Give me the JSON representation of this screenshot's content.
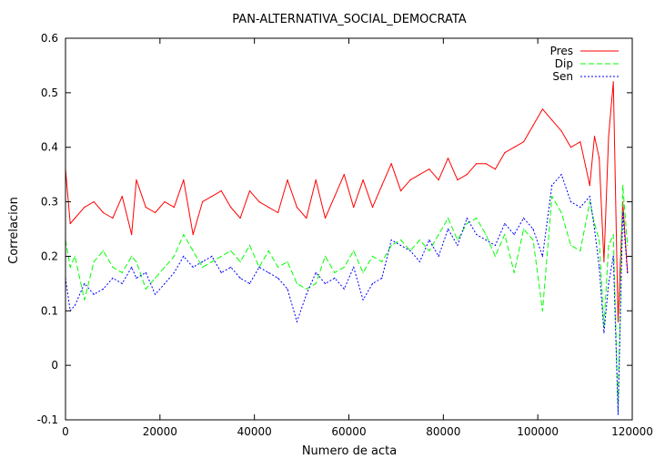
{
  "chart_data": {
    "type": "line",
    "title": "PAN-ALTERNATIVA_SOCIAL_DEMOCRATA",
    "xlabel": "Numero de acta",
    "ylabel": "Correlacion",
    "xlim": [
      0,
      120000
    ],
    "ylim": [
      -0.1,
      0.6
    ],
    "xticks": [
      0,
      20000,
      40000,
      60000,
      80000,
      100000,
      120000
    ],
    "yticks": [
      -0.1,
      0,
      0.1,
      0.2,
      0.3,
      0.4,
      0.5,
      0.6
    ],
    "grid": false,
    "legend_position": "top-right",
    "series": [
      {
        "name": "Pres",
        "color": "#ff0000",
        "dash": "solid",
        "x": [
          0,
          1000,
          2000,
          4000,
          6000,
          8000,
          10000,
          12000,
          14000,
          15000,
          17000,
          19000,
          21000,
          23000,
          25000,
          27000,
          29000,
          31000,
          33000,
          35000,
          37000,
          39000,
          41000,
          43000,
          45000,
          47000,
          49000,
          51000,
          53000,
          55000,
          57000,
          59000,
          61000,
          63000,
          65000,
          67000,
          69000,
          71000,
          73000,
          75000,
          77000,
          79000,
          81000,
          83000,
          85000,
          87000,
          89000,
          91000,
          93000,
          95000,
          97000,
          99000,
          101000,
          103000,
          105000,
          107000,
          109000,
          111000,
          112000,
          113000,
          114000,
          115000,
          116000,
          117000,
          118000,
          119000
        ],
        "values": [
          0.36,
          0.26,
          0.27,
          0.29,
          0.3,
          0.28,
          0.27,
          0.31,
          0.24,
          0.34,
          0.29,
          0.28,
          0.3,
          0.29,
          0.34,
          0.24,
          0.3,
          0.31,
          0.32,
          0.29,
          0.27,
          0.32,
          0.3,
          0.29,
          0.28,
          0.34,
          0.29,
          0.27,
          0.34,
          0.27,
          0.31,
          0.35,
          0.29,
          0.34,
          0.29,
          0.33,
          0.37,
          0.32,
          0.34,
          0.35,
          0.36,
          0.34,
          0.38,
          0.34,
          0.35,
          0.37,
          0.37,
          0.36,
          0.39,
          0.4,
          0.41,
          0.44,
          0.47,
          0.45,
          0.43,
          0.4,
          0.41,
          0.33,
          0.42,
          0.38,
          0.19,
          0.42,
          0.52,
          0.08,
          0.3,
          0.17
        ]
      },
      {
        "name": "Dip",
        "color": "#00ff00",
        "dash": "6,3",
        "x": [
          0,
          1000,
          2000,
          4000,
          6000,
          8000,
          10000,
          12000,
          14000,
          15000,
          17000,
          19000,
          21000,
          23000,
          25000,
          27000,
          29000,
          31000,
          33000,
          35000,
          37000,
          39000,
          41000,
          43000,
          45000,
          47000,
          49000,
          51000,
          53000,
          55000,
          57000,
          59000,
          61000,
          63000,
          65000,
          67000,
          69000,
          71000,
          73000,
          75000,
          77000,
          79000,
          81000,
          83000,
          85000,
          87000,
          89000,
          91000,
          93000,
          95000,
          97000,
          99000,
          101000,
          103000,
          105000,
          107000,
          109000,
          111000,
          112000,
          113000,
          114000,
          115000,
          116000,
          117000,
          118000,
          119000
        ],
        "values": [
          0.23,
          0.18,
          0.2,
          0.12,
          0.19,
          0.21,
          0.18,
          0.17,
          0.2,
          0.19,
          0.14,
          0.16,
          0.18,
          0.2,
          0.24,
          0.21,
          0.18,
          0.19,
          0.2,
          0.21,
          0.19,
          0.22,
          0.18,
          0.21,
          0.18,
          0.19,
          0.15,
          0.14,
          0.15,
          0.2,
          0.17,
          0.18,
          0.21,
          0.17,
          0.2,
          0.19,
          0.22,
          0.23,
          0.21,
          0.23,
          0.21,
          0.24,
          0.27,
          0.23,
          0.26,
          0.27,
          0.24,
          0.2,
          0.24,
          0.17,
          0.25,
          0.23,
          0.1,
          0.31,
          0.28,
          0.22,
          0.21,
          0.3,
          0.26,
          0.23,
          0.07,
          0.22,
          0.24,
          -0.08,
          0.33,
          0.22
        ]
      },
      {
        "name": "Sen",
        "color": "#0000ff",
        "dash": "2,2",
        "x": [
          0,
          1000,
          2000,
          4000,
          6000,
          8000,
          10000,
          12000,
          14000,
          15000,
          17000,
          19000,
          21000,
          23000,
          25000,
          27000,
          29000,
          31000,
          33000,
          35000,
          37000,
          39000,
          41000,
          43000,
          45000,
          47000,
          49000,
          51000,
          53000,
          55000,
          57000,
          59000,
          61000,
          63000,
          65000,
          67000,
          69000,
          71000,
          73000,
          75000,
          77000,
          79000,
          81000,
          83000,
          85000,
          87000,
          89000,
          91000,
          93000,
          95000,
          97000,
          99000,
          101000,
          103000,
          105000,
          107000,
          109000,
          111000,
          112000,
          113000,
          114000,
          115000,
          116000,
          117000,
          118000,
          119000
        ],
        "values": [
          0.16,
          0.1,
          0.11,
          0.15,
          0.13,
          0.14,
          0.16,
          0.15,
          0.18,
          0.16,
          0.17,
          0.13,
          0.15,
          0.17,
          0.2,
          0.18,
          0.19,
          0.2,
          0.17,
          0.18,
          0.16,
          0.15,
          0.18,
          0.17,
          0.16,
          0.14,
          0.08,
          0.13,
          0.17,
          0.15,
          0.16,
          0.14,
          0.18,
          0.12,
          0.15,
          0.16,
          0.23,
          0.22,
          0.21,
          0.19,
          0.23,
          0.2,
          0.25,
          0.22,
          0.27,
          0.24,
          0.23,
          0.22,
          0.26,
          0.24,
          0.27,
          0.25,
          0.2,
          0.33,
          0.35,
          0.3,
          0.29,
          0.31,
          0.25,
          0.18,
          0.06,
          0.15,
          0.2,
          -0.09,
          0.28,
          0.17
        ]
      }
    ]
  }
}
